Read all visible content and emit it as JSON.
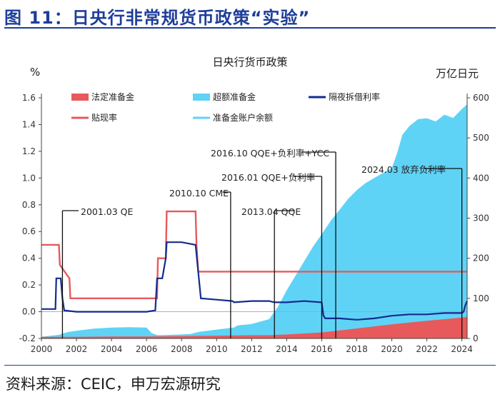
{
  "header": {
    "title": "图 11：日央行非常规货币政策“实验”"
  },
  "source": "资料来源：CEIC，申万宏源研究",
  "chart_data": {
    "type": "area",
    "title": "日央行货币政策",
    "left_unit": "%",
    "right_unit": "万亿日元",
    "x_ticks": [
      "2000",
      "2002",
      "2004",
      "2006",
      "2008",
      "2010",
      "2012",
      "2014",
      "2016",
      "2018",
      "2020",
      "2022",
      "2024"
    ],
    "y_left_ticks": [
      "-0.2",
      "0.0",
      "0.2",
      "0.4",
      "0.6",
      "0.8",
      "1.0",
      "1.2",
      "1.4",
      "1.6"
    ],
    "y_right_ticks": [
      "0",
      "100",
      "200",
      "300",
      "400",
      "500",
      "600"
    ],
    "ylim_left": [
      -0.2,
      1.6
    ],
    "ylim_right": [
      0,
      600
    ],
    "xlim": [
      2000,
      2024.3
    ],
    "legend": [
      {
        "label": "法定准备金",
        "kind": "area",
        "color": "#e8595b"
      },
      {
        "label": "超额准备金",
        "kind": "area",
        "color": "#5fd3f6"
      },
      {
        "label": "隔夜拆借利率",
        "kind": "line",
        "color": "#122c8f"
      },
      {
        "label": "贴现率",
        "kind": "line",
        "color": "#e8595b"
      },
      {
        "label": "准备金账户余额",
        "kind": "line",
        "color": "#5fd3f6"
      }
    ],
    "series": [
      {
        "name": "超额准备金",
        "axis": "right",
        "x": [
          2000.0,
          2001.0,
          2001.5,
          2002.0,
          2003.0,
          2004.0,
          2005.0,
          2006.0,
          2006.3,
          2006.6,
          2007.0,
          2008.0,
          2008.5,
          2009.0,
          2010.0,
          2011.0,
          2011.2,
          2012.0,
          2013.0,
          2013.5,
          2014.0,
          2014.5,
          2015.0,
          2015.5,
          2016.0,
          2016.5,
          2017.0,
          2017.5,
          2018.0,
          2018.5,
          2019.0,
          2019.5,
          2020.0,
          2020.3,
          2020.6,
          2021.0,
          2021.5,
          2022.0,
          2022.5,
          2023.0,
          2023.5,
          2024.0,
          2024.3
        ],
        "values": [
          0,
          5,
          12,
          15,
          20,
          22,
          23,
          22,
          8,
          3,
          3,
          4,
          5,
          10,
          15,
          20,
          25,
          28,
          40,
          70,
          110,
          145,
          180,
          215,
          245,
          275,
          300,
          325,
          345,
          360,
          370,
          380,
          390,
          425,
          470,
          490,
          505,
          505,
          495,
          510,
          500,
          520,
          530
        ]
      },
      {
        "name": "法定准备金",
        "axis": "right",
        "x": [
          2000.0,
          2002.0,
          2004.0,
          2006.0,
          2008.0,
          2010.0,
          2012.0,
          2013.0,
          2014.0,
          2016.0,
          2018.0,
          2020.0,
          2022.0,
          2024.0,
          2024.3
        ],
        "values": [
          4,
          4,
          5,
          5,
          6,
          7,
          8,
          8,
          10,
          15,
          25,
          35,
          44,
          52,
          54
        ]
      },
      {
        "name": "隔夜拆借利率",
        "axis": "left",
        "x": [
          2000.0,
          2000.8,
          2000.85,
          2001.1,
          2001.2,
          2001.3,
          2002.0,
          2004.0,
          2006.0,
          2006.5,
          2006.6,
          2006.9,
          2007.1,
          2007.15,
          2008.0,
          2008.8,
          2008.95,
          2009.1,
          2010.0,
          2010.9,
          2011.0,
          2012.0,
          2013.0,
          2013.3,
          2014.0,
          2015.0,
          2016.0,
          2016.1,
          2016.2,
          2017.0,
          2018.0,
          2019.0,
          2020.0,
          2021.0,
          2022.0,
          2023.0,
          2024.0,
          2024.1,
          2024.2,
          2024.3
        ],
        "values": [
          0.02,
          0.02,
          0.25,
          0.25,
          0.1,
          0.01,
          0.0,
          0.0,
          0.0,
          0.01,
          0.25,
          0.25,
          0.4,
          0.52,
          0.52,
          0.5,
          0.3,
          0.1,
          0.09,
          0.08,
          0.07,
          0.08,
          0.08,
          0.07,
          0.07,
          0.08,
          0.07,
          -0.03,
          -0.05,
          -0.05,
          -0.06,
          -0.05,
          -0.03,
          -0.02,
          -0.02,
          -0.01,
          -0.01,
          0.0,
          0.05,
          0.08
        ]
      },
      {
        "name": "贴现率",
        "axis": "left",
        "x": [
          2000.0,
          2001.0,
          2001.05,
          2001.6,
          2001.65,
          2006.6,
          2006.65,
          2007.1,
          2007.15,
          2008.8,
          2008.85,
          2008.95,
          2009.0,
          2024.3
        ],
        "values": [
          0.5,
          0.5,
          0.35,
          0.25,
          0.1,
          0.1,
          0.4,
          0.4,
          0.75,
          0.75,
          0.5,
          0.3,
          0.3,
          0.3
        ]
      }
    ],
    "annotations": [
      {
        "label": "2001.03 QE",
        "x": 2001.2
      },
      {
        "label": "2010.10 CME",
        "x": 2010.8
      },
      {
        "label": "2013.04 QQE",
        "x": 2013.3
      },
      {
        "label": "2016.01 QQE+负利率",
        "x": 2016.0
      },
      {
        "label": "2016.10 QQE+负利率+YCC",
        "x": 2016.8
      },
      {
        "label": "2024.03 放弃负利率",
        "x": 2024.0
      }
    ]
  }
}
